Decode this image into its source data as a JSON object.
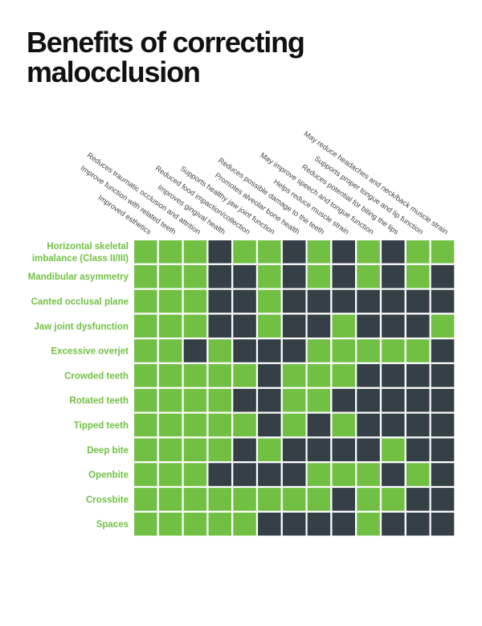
{
  "title": "Benefits of correcting\nmalocclusion",
  "colors": {
    "green": "#71c044",
    "dark": "#343f46",
    "grid_line": "#ffffff"
  },
  "chart_data": {
    "type": "heatmap",
    "columns": [
      "Improved esthetics",
      "Improve function with related teeth",
      "Reduces traumatic occlusion and attrition",
      "Improves gingival health",
      "Reduced food impaction/collection",
      "Supports healthy jaw joint function",
      "Promotes alveolar bone health",
      "Reduces possible damage to the teeth",
      "Helps reduce muscle strain",
      "May improve speech and tongue function",
      "Reduces potential for biting the lips",
      "Supports proper tongue and lip function",
      "May reduce headaches and neck/back muscle strain"
    ],
    "rows": [
      {
        "label": [
          "Horizontal skeletal",
          "imbalance (Class II/III)"
        ],
        "values": [
          1,
          1,
          1,
          0,
          1,
          1,
          0,
          1,
          0,
          1,
          0,
          1,
          1
        ]
      },
      {
        "label": [
          "Mandibular asymmetry"
        ],
        "values": [
          1,
          1,
          1,
          0,
          0,
          1,
          0,
          1,
          0,
          1,
          0,
          1,
          0
        ]
      },
      {
        "label": [
          "Canted occlusal plane"
        ],
        "values": [
          1,
          1,
          1,
          0,
          0,
          1,
          0,
          0,
          0,
          0,
          0,
          0,
          0
        ]
      },
      {
        "label": [
          "Jaw joint dysfunction"
        ],
        "values": [
          1,
          1,
          1,
          0,
          0,
          1,
          0,
          0,
          1,
          0,
          0,
          0,
          1
        ]
      },
      {
        "label": [
          "Excessive overjet"
        ],
        "values": [
          1,
          1,
          0,
          1,
          0,
          0,
          0,
          1,
          1,
          1,
          1,
          1,
          0
        ]
      },
      {
        "label": [
          "Crowded teeth"
        ],
        "values": [
          1,
          1,
          1,
          1,
          1,
          0,
          1,
          1,
          1,
          0,
          0,
          0,
          0
        ]
      },
      {
        "label": [
          "Rotated teeth"
        ],
        "values": [
          1,
          1,
          1,
          1,
          0,
          0,
          1,
          1,
          0,
          0,
          0,
          0,
          0
        ]
      },
      {
        "label": [
          "Tipped teeth"
        ],
        "values": [
          1,
          1,
          1,
          1,
          1,
          0,
          1,
          0,
          1,
          0,
          0,
          0,
          0
        ]
      },
      {
        "label": [
          "Deep bite"
        ],
        "values": [
          1,
          1,
          1,
          1,
          0,
          1,
          0,
          0,
          0,
          0,
          1,
          0,
          0
        ]
      },
      {
        "label": [
          "Openbite"
        ],
        "values": [
          1,
          1,
          1,
          0,
          0,
          0,
          0,
          1,
          1,
          1,
          0,
          1,
          0
        ]
      },
      {
        "label": [
          "Crossbite"
        ],
        "values": [
          1,
          1,
          1,
          1,
          1,
          1,
          1,
          1,
          0,
          1,
          1,
          0,
          0
        ]
      },
      {
        "label": [
          "Spaces"
        ],
        "values": [
          1,
          1,
          1,
          1,
          1,
          0,
          0,
          0,
          0,
          1,
          0,
          0,
          0
        ]
      }
    ],
    "value_legend": {
      "1": "green",
      "0": "dark"
    }
  }
}
